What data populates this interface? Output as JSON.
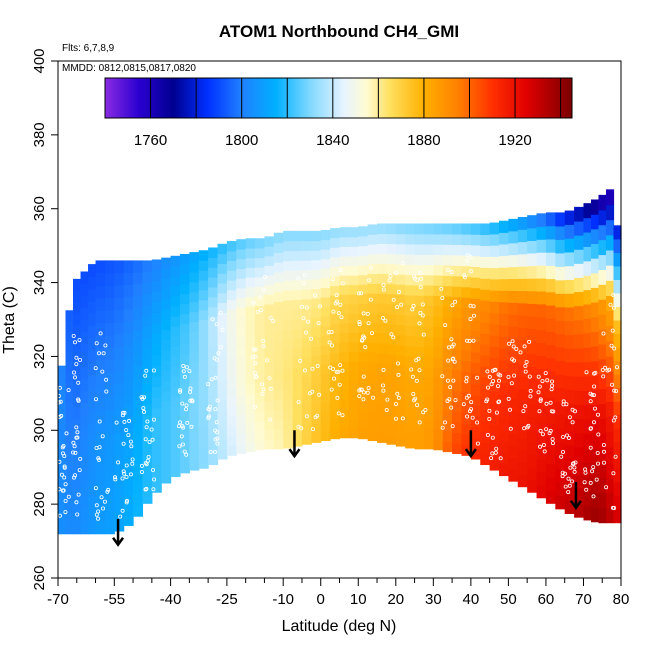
{
  "chart_data": {
    "type": "heatmap",
    "title": "ATOM1 Northbound CH4_GMI",
    "annotations": [
      "Flts: 6,7,8,9",
      "MMDD: 0812,0815,0817,0820"
    ],
    "xlabel": "Latitude (deg N)",
    "ylabel": "Theta (C)",
    "xlim": [
      -70,
      80
    ],
    "ylim": [
      260,
      400
    ],
    "x_major_ticks": [
      -70,
      -55,
      -40,
      -25,
      -10,
      0,
      10,
      20,
      30,
      40,
      50,
      60,
      70,
      80
    ],
    "x_minor_ticks": [
      -65,
      -60,
      -50,
      -45,
      -35,
      -30,
      -20,
      -15,
      -5,
      5,
      15,
      25,
      35,
      45,
      55,
      65,
      75
    ],
    "x_tick_labels": [
      "-70",
      "-55",
      "-40",
      "-25",
      "-10",
      "0",
      "10",
      "20",
      "30",
      "40",
      "50",
      "60",
      "70",
      "80"
    ],
    "y_ticks": [
      260,
      280,
      300,
      320,
      340,
      360,
      380,
      400
    ],
    "y_tick_labels": [
      "260",
      "280",
      "300",
      "320",
      "340",
      "360",
      "380",
      "400"
    ],
    "grid": false,
    "colorbar": {
      "orientation": "horizontal",
      "placement": "top",
      "range": [
        1740,
        1945
      ],
      "ticks": [
        1760,
        1800,
        1840,
        1880,
        1920
      ],
      "tick_labels": [
        "1760",
        "1800",
        "1840",
        "1880",
        "1920"
      ],
      "breaks": [
        1760,
        1780,
        1800,
        1820,
        1840,
        1860,
        1880,
        1900,
        1920,
        1940
      ],
      "stops": [
        {
          "value": 1740,
          "color": "#8a2be2"
        },
        {
          "value": 1755,
          "color": "#2a00d0"
        },
        {
          "value": 1770,
          "color": "#000090"
        },
        {
          "value": 1785,
          "color": "#0030ff"
        },
        {
          "value": 1800,
          "color": "#2080ff"
        },
        {
          "value": 1815,
          "color": "#00b0ff"
        },
        {
          "value": 1830,
          "color": "#80d8ff"
        },
        {
          "value": 1845,
          "color": "#e8f4ff"
        },
        {
          "value": 1855,
          "color": "#fffbd0"
        },
        {
          "value": 1865,
          "color": "#ffe060"
        },
        {
          "value": 1880,
          "color": "#ffb000"
        },
        {
          "value": 1895,
          "color": "#ff8000"
        },
        {
          "value": 1910,
          "color": "#ff3000"
        },
        {
          "value": 1925,
          "color": "#e00000"
        },
        {
          "value": 1945,
          "color": "#7a0000"
        }
      ]
    },
    "curtain_columns": [
      {
        "lat": -70,
        "bottom": 272,
        "top": 310,
        "values": [
          1805,
          1805,
          1805,
          1805
        ]
      },
      {
        "lat": -66,
        "bottom": 272,
        "top": 340,
        "values": [
          1803,
          1800,
          1795,
          1790
        ]
      },
      {
        "lat": -60,
        "bottom": 272,
        "top": 346,
        "values": [
          1808,
          1805,
          1798,
          1790
        ]
      },
      {
        "lat": -55,
        "bottom": 272,
        "top": 346,
        "values": [
          1810,
          1808,
          1800,
          1792
        ]
      },
      {
        "lat": -50,
        "bottom": 275,
        "top": 346,
        "values": [
          1815,
          1812,
          1805,
          1795
        ]
      },
      {
        "lat": -45,
        "bottom": 282,
        "top": 346,
        "values": [
          1820,
          1820,
          1812,
          1800
        ]
      },
      {
        "lat": -40,
        "bottom": 287,
        "top": 347,
        "values": [
          1823,
          1823,
          1818,
          1805
        ]
      },
      {
        "lat": -35,
        "bottom": 289,
        "top": 348,
        "values": [
          1828,
          1828,
          1824,
          1810
        ]
      },
      {
        "lat": -30,
        "bottom": 290,
        "top": 349,
        "values": [
          1832,
          1834,
          1835,
          1815
        ]
      },
      {
        "lat": -25,
        "bottom": 293,
        "top": 351,
        "values": [
          1840,
          1845,
          1848,
          1820
        ]
      },
      {
        "lat": -20,
        "bottom": 294,
        "top": 352,
        "values": [
          1848,
          1855,
          1856,
          1825
        ]
      },
      {
        "lat": -15,
        "bottom": 295,
        "top": 352,
        "values": [
          1855,
          1860,
          1860,
          1828
        ]
      },
      {
        "lat": -10,
        "bottom": 295,
        "top": 354,
        "values": [
          1858,
          1862,
          1860,
          1830
        ]
      },
      {
        "lat": -5,
        "bottom": 296,
        "top": 354,
        "values": [
          1868,
          1866,
          1860,
          1830
        ]
      },
      {
        "lat": 0,
        "bottom": 297,
        "top": 354,
        "values": [
          1876,
          1872,
          1862,
          1830
        ]
      },
      {
        "lat": 5,
        "bottom": 298,
        "top": 355,
        "values": [
          1882,
          1878,
          1868,
          1832
        ]
      },
      {
        "lat": 10,
        "bottom": 298,
        "top": 355,
        "values": [
          1885,
          1882,
          1870,
          1832
        ]
      },
      {
        "lat": 15,
        "bottom": 297,
        "top": 356,
        "values": [
          1886,
          1884,
          1872,
          1832
        ]
      },
      {
        "lat": 20,
        "bottom": 296,
        "top": 356,
        "values": [
          1886,
          1884,
          1872,
          1830
        ]
      },
      {
        "lat": 25,
        "bottom": 295,
        "top": 356,
        "values": [
          1885,
          1882,
          1870,
          1828
        ]
      },
      {
        "lat": 30,
        "bottom": 295,
        "top": 356,
        "values": [
          1888,
          1884,
          1874,
          1826
        ]
      },
      {
        "lat": 35,
        "bottom": 294,
        "top": 356,
        "values": [
          1905,
          1895,
          1882,
          1824
        ]
      },
      {
        "lat": 40,
        "bottom": 293,
        "top": 356,
        "values": [
          1912,
          1902,
          1888,
          1820
        ]
      },
      {
        "lat": 45,
        "bottom": 290,
        "top": 356,
        "values": [
          1916,
          1908,
          1893,
          1815
        ]
      },
      {
        "lat": 50,
        "bottom": 287,
        "top": 357,
        "values": [
          1918,
          1912,
          1898,
          1808
        ]
      },
      {
        "lat": 55,
        "bottom": 284,
        "top": 358,
        "values": [
          1920,
          1914,
          1900,
          1800
        ]
      },
      {
        "lat": 60,
        "bottom": 281,
        "top": 359,
        "values": [
          1925,
          1916,
          1900,
          1790
        ]
      },
      {
        "lat": 65,
        "bottom": 278,
        "top": 359,
        "values": [
          1930,
          1918,
          1898,
          1775
        ]
      },
      {
        "lat": 70,
        "bottom": 276,
        "top": 361,
        "values": [
          1935,
          1920,
          1895,
          1765
        ]
      },
      {
        "lat": 74,
        "bottom": 275,
        "top": 363,
        "values": [
          1940,
          1922,
          1890,
          1755
        ]
      },
      {
        "lat": 78,
        "bottom": 275,
        "top": 366,
        "values": [
          1930,
          1915,
          1880,
          1750
        ]
      },
      {
        "lat": 80,
        "bottom": 275,
        "top": 345,
        "values": [
          1925,
          1910,
          1870,
          1800
        ]
      }
    ],
    "observation_tracks": [
      {
        "lat_range": [
          -70,
          -67
        ],
        "theta_range": [
          275,
          312
        ]
      },
      {
        "lat_range": [
          -66,
          -64
        ],
        "theta_range": [
          276,
          326
        ]
      },
      {
        "lat_range": [
          -60,
          -56
        ],
        "theta_range": [
          276,
          330
        ]
      },
      {
        "lat_range": [
          -55,
          -50
        ],
        "theta_range": [
          276,
          305
        ]
      },
      {
        "lat_range": [
          -48,
          -44
        ],
        "theta_range": [
          283,
          318
        ]
      },
      {
        "lat_range": [
          -38,
          -34
        ],
        "theta_range": [
          292,
          318
        ]
      },
      {
        "lat_range": [
          -30,
          -26
        ],
        "theta_range": [
          294,
          332
        ]
      },
      {
        "lat_range": [
          -18,
          -12
        ],
        "theta_range": [
          300,
          344
        ]
      },
      {
        "lat_range": [
          -6,
          0
        ],
        "theta_range": [
          300,
          342
        ]
      },
      {
        "lat_range": [
          2,
          6
        ],
        "theta_range": [
          304,
          344
        ]
      },
      {
        "lat_range": [
          10,
          14
        ],
        "theta_range": [
          304,
          346
        ]
      },
      {
        "lat_range": [
          16,
          22
        ],
        "theta_range": [
          303,
          346
        ]
      },
      {
        "lat_range": [
          24,
          28
        ],
        "theta_range": [
          302,
          344
        ]
      },
      {
        "lat_range": [
          32,
          36
        ],
        "theta_range": [
          300,
          346
        ]
      },
      {
        "lat_range": [
          38,
          42
        ],
        "theta_range": [
          296,
          348
        ]
      },
      {
        "lat_range": [
          44,
          48
        ],
        "theta_range": [
          292,
          318
        ]
      },
      {
        "lat_range": [
          50,
          56
        ],
        "theta_range": [
          300,
          325
        ]
      },
      {
        "lat_range": [
          58,
          62
        ],
        "theta_range": [
          294,
          318
        ]
      },
      {
        "lat_range": [
          64,
          68
        ],
        "theta_range": [
          283,
          312
        ]
      },
      {
        "lat_range": [
          70,
          74
        ],
        "theta_range": [
          282,
          318
        ]
      },
      {
        "lat_range": [
          75,
          79
        ],
        "theta_range": [
          278,
          338
        ]
      }
    ],
    "arrows": [
      {
        "lat": -54,
        "theta_top": 276,
        "theta_tip": 269
      },
      {
        "lat": -7,
        "theta_top": 300,
        "theta_tip": 293
      },
      {
        "lat": 40,
        "theta_top": 300,
        "theta_tip": 293
      },
      {
        "lat": 68,
        "theta_top": 286,
        "theta_tip": 279
      }
    ]
  }
}
